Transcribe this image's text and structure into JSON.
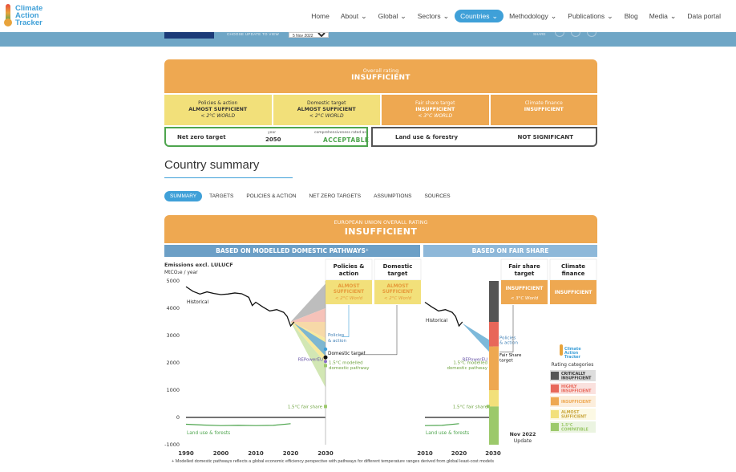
{
  "logo": {
    "line1": "Climate",
    "line2": "Action",
    "line3": "Tracker"
  },
  "nav": [
    {
      "label": "Home",
      "chevron": false,
      "active": false
    },
    {
      "label": "About",
      "chevron": true,
      "active": false
    },
    {
      "label": "Global",
      "chevron": true,
      "active": false
    },
    {
      "label": "Sectors",
      "chevron": true,
      "active": false
    },
    {
      "label": "Countries",
      "chevron": true,
      "active": true
    },
    {
      "label": "Methodology",
      "chevron": true,
      "active": false
    },
    {
      "label": "Publications",
      "chevron": true,
      "active": false
    },
    {
      "label": "Blog",
      "chevron": false,
      "active": false
    },
    {
      "label": "Media",
      "chevron": true,
      "active": false
    },
    {
      "label": "Data portal",
      "chevron": false,
      "active": false
    }
  ],
  "update": {
    "choose_label": "CHOOSE UPDATE TO VIEW",
    "selected": "5 Nov 2022",
    "share_label": "SHARE"
  },
  "rating": {
    "overall_label": "Overall rating",
    "overall_value": "INSUFFICIENT",
    "cells": [
      {
        "label": "Policies & action",
        "value": "ALMOST SUFFICIENT",
        "sub": "< 2°C WORLD"
      },
      {
        "label": "Domestic target",
        "value": "ALMOST SUFFICIENT",
        "sub": "< 2°C WORLD"
      },
      {
        "label": "Fair share target",
        "value": "INSUFFICIENT",
        "sub": "< 3°C WORLD"
      },
      {
        "label": "Climate finance",
        "value": "INSUFFICIENT",
        "sub": ""
      }
    ],
    "net_zero": {
      "label": "Net zero target",
      "year_label": "year",
      "year": "2050",
      "comp_label": "comprehensiveness rated as",
      "comp_value": "ACCEPTABLE"
    },
    "land_use": {
      "label": "Land use & forestry",
      "value": "NOT SIGNIFICANT"
    }
  },
  "summary_title": "Country summary",
  "tabs": [
    {
      "label": "SUMMARY",
      "active": true
    },
    {
      "label": "TARGETS",
      "active": false
    },
    {
      "label": "POLICIES & ACTION",
      "active": false
    },
    {
      "label": "NET ZERO TARGETS",
      "active": false
    },
    {
      "label": "ASSUMPTIONS",
      "active": false
    },
    {
      "label": "SOURCES",
      "active": false
    }
  ],
  "eu_head": {
    "label": "EUROPEAN UNION OVERALL RATING",
    "value": "INSUFFICIENT"
  },
  "bands": {
    "left": "BASED ON MODELLED DOMESTIC PATHWAYS⁺",
    "right": "BASED ON FAIR SHARE"
  },
  "colors": {
    "orange": "#eea851",
    "yellow": "#f2e07a",
    "green": "#4ea54e",
    "blue": "#3fa0d8",
    "critically": "#555555",
    "highly": "#e8675a",
    "insufficient": "#eea851",
    "almost": "#f2e07a",
    "compatible": "#9cc96b"
  },
  "chart_data": [
    {
      "type": "line",
      "ylabel": "Emissions excl. LULUCF",
      "yunit": "MtCO₂e / year",
      "ylim": [
        -1000,
        5000
      ],
      "yticks": [
        -1000,
        0,
        1000,
        2000,
        3000,
        4000,
        5000
      ],
      "xlim": [
        1990,
        2030
      ],
      "xticks": [
        1990,
        2000,
        2010,
        2020,
        2030
      ],
      "historical": {
        "label": "Historical",
        "x": [
          1990,
          1992,
          1994,
          1996,
          1998,
          2000,
          2002,
          2004,
          2006,
          2008,
          2009,
          2010,
          2012,
          2014,
          2016,
          2018,
          2019,
          2020,
          2021
        ],
        "y": [
          4790,
          4620,
          4520,
          4600,
          4540,
          4500,
          4520,
          4560,
          4530,
          4400,
          4100,
          4220,
          4050,
          3900,
          3950,
          3850,
          3700,
          3350,
          3500
        ]
      },
      "lulucf": {
        "label": "Land use & forests",
        "x": [
          1990,
          1995,
          2000,
          2005,
          2010,
          2015,
          2020
        ],
        "y": [
          -250,
          -280,
          -300,
          -290,
          -300,
          -290,
          -230
        ]
      },
      "labels": {
        "policies": "Policies & action",
        "domestic": "Domestic target",
        "repower": "REPowerEU",
        "modelled": "1.5°C modelled domestic pathway",
        "fairshare": "1.5°C fair share"
      },
      "domestic_target_2030": 2200,
      "policies_2030": [
        2350,
        2600
      ],
      "repower_2030": 2050,
      "fairshare_2030": 400,
      "columns": [
        {
          "label": "Policies & action",
          "value": "ALMOST SUFFICIENT",
          "sub": "< 2°C World"
        },
        {
          "label": "Domestic target",
          "value": "ALMOST SUFFICIENT",
          "sub": "< 2°C World"
        }
      ]
    },
    {
      "type": "line",
      "xlim": [
        2010,
        2030
      ],
      "xticks": [
        2010,
        2020,
        2030
      ],
      "historical": {
        "label": "Historical",
        "x": [
          2010,
          2012,
          2014,
          2016,
          2018,
          2019,
          2020,
          2021
        ],
        "y": [
          4220,
          4050,
          3900,
          3950,
          3850,
          3700,
          3350,
          3500
        ]
      },
      "lulucf": {
        "label": "Land use & forests",
        "x": [
          2010,
          2015,
          2020
        ],
        "y": [
          -300,
          -290,
          -230
        ]
      },
      "labels": {
        "policies": "Policies & action",
        "repower": "REPowerEU",
        "modelled": "1.5°C modelled domestic pathway",
        "fairshare": "1.5°C fair share",
        "fairshare_target": "Fair Share target",
        "update": "Nov 2022 Update"
      },
      "columns": [
        {
          "label": "Fair share target",
          "value": "INSUFFICIENT",
          "sub": "< 3°C World"
        },
        {
          "label": "Climate finance",
          "value": "INSUFFICIENT",
          "sub": ""
        }
      ]
    }
  ],
  "legend": {
    "title": "Rating categories",
    "logo": [
      "Climate",
      "Action",
      "Tracker"
    ],
    "items": [
      {
        "label": "CRITICALLY INSUFFICIENT",
        "color": "#555555"
      },
      {
        "label": "HIGHLY INSUFFICIENT",
        "color": "#e8675a"
      },
      {
        "label": "INSUFFICIENT",
        "color": "#eea851"
      },
      {
        "label": "ALMOST SUFFICIENT",
        "color": "#f2e07a"
      },
      {
        "label": "1.5°C COMPATIBLE",
        "color": "#9cc96b"
      }
    ]
  },
  "footnote": "+ Modelled domestic pathways reflects a global economic efficiency perspective with pathways for different temperature ranges derived from global least-cost models"
}
